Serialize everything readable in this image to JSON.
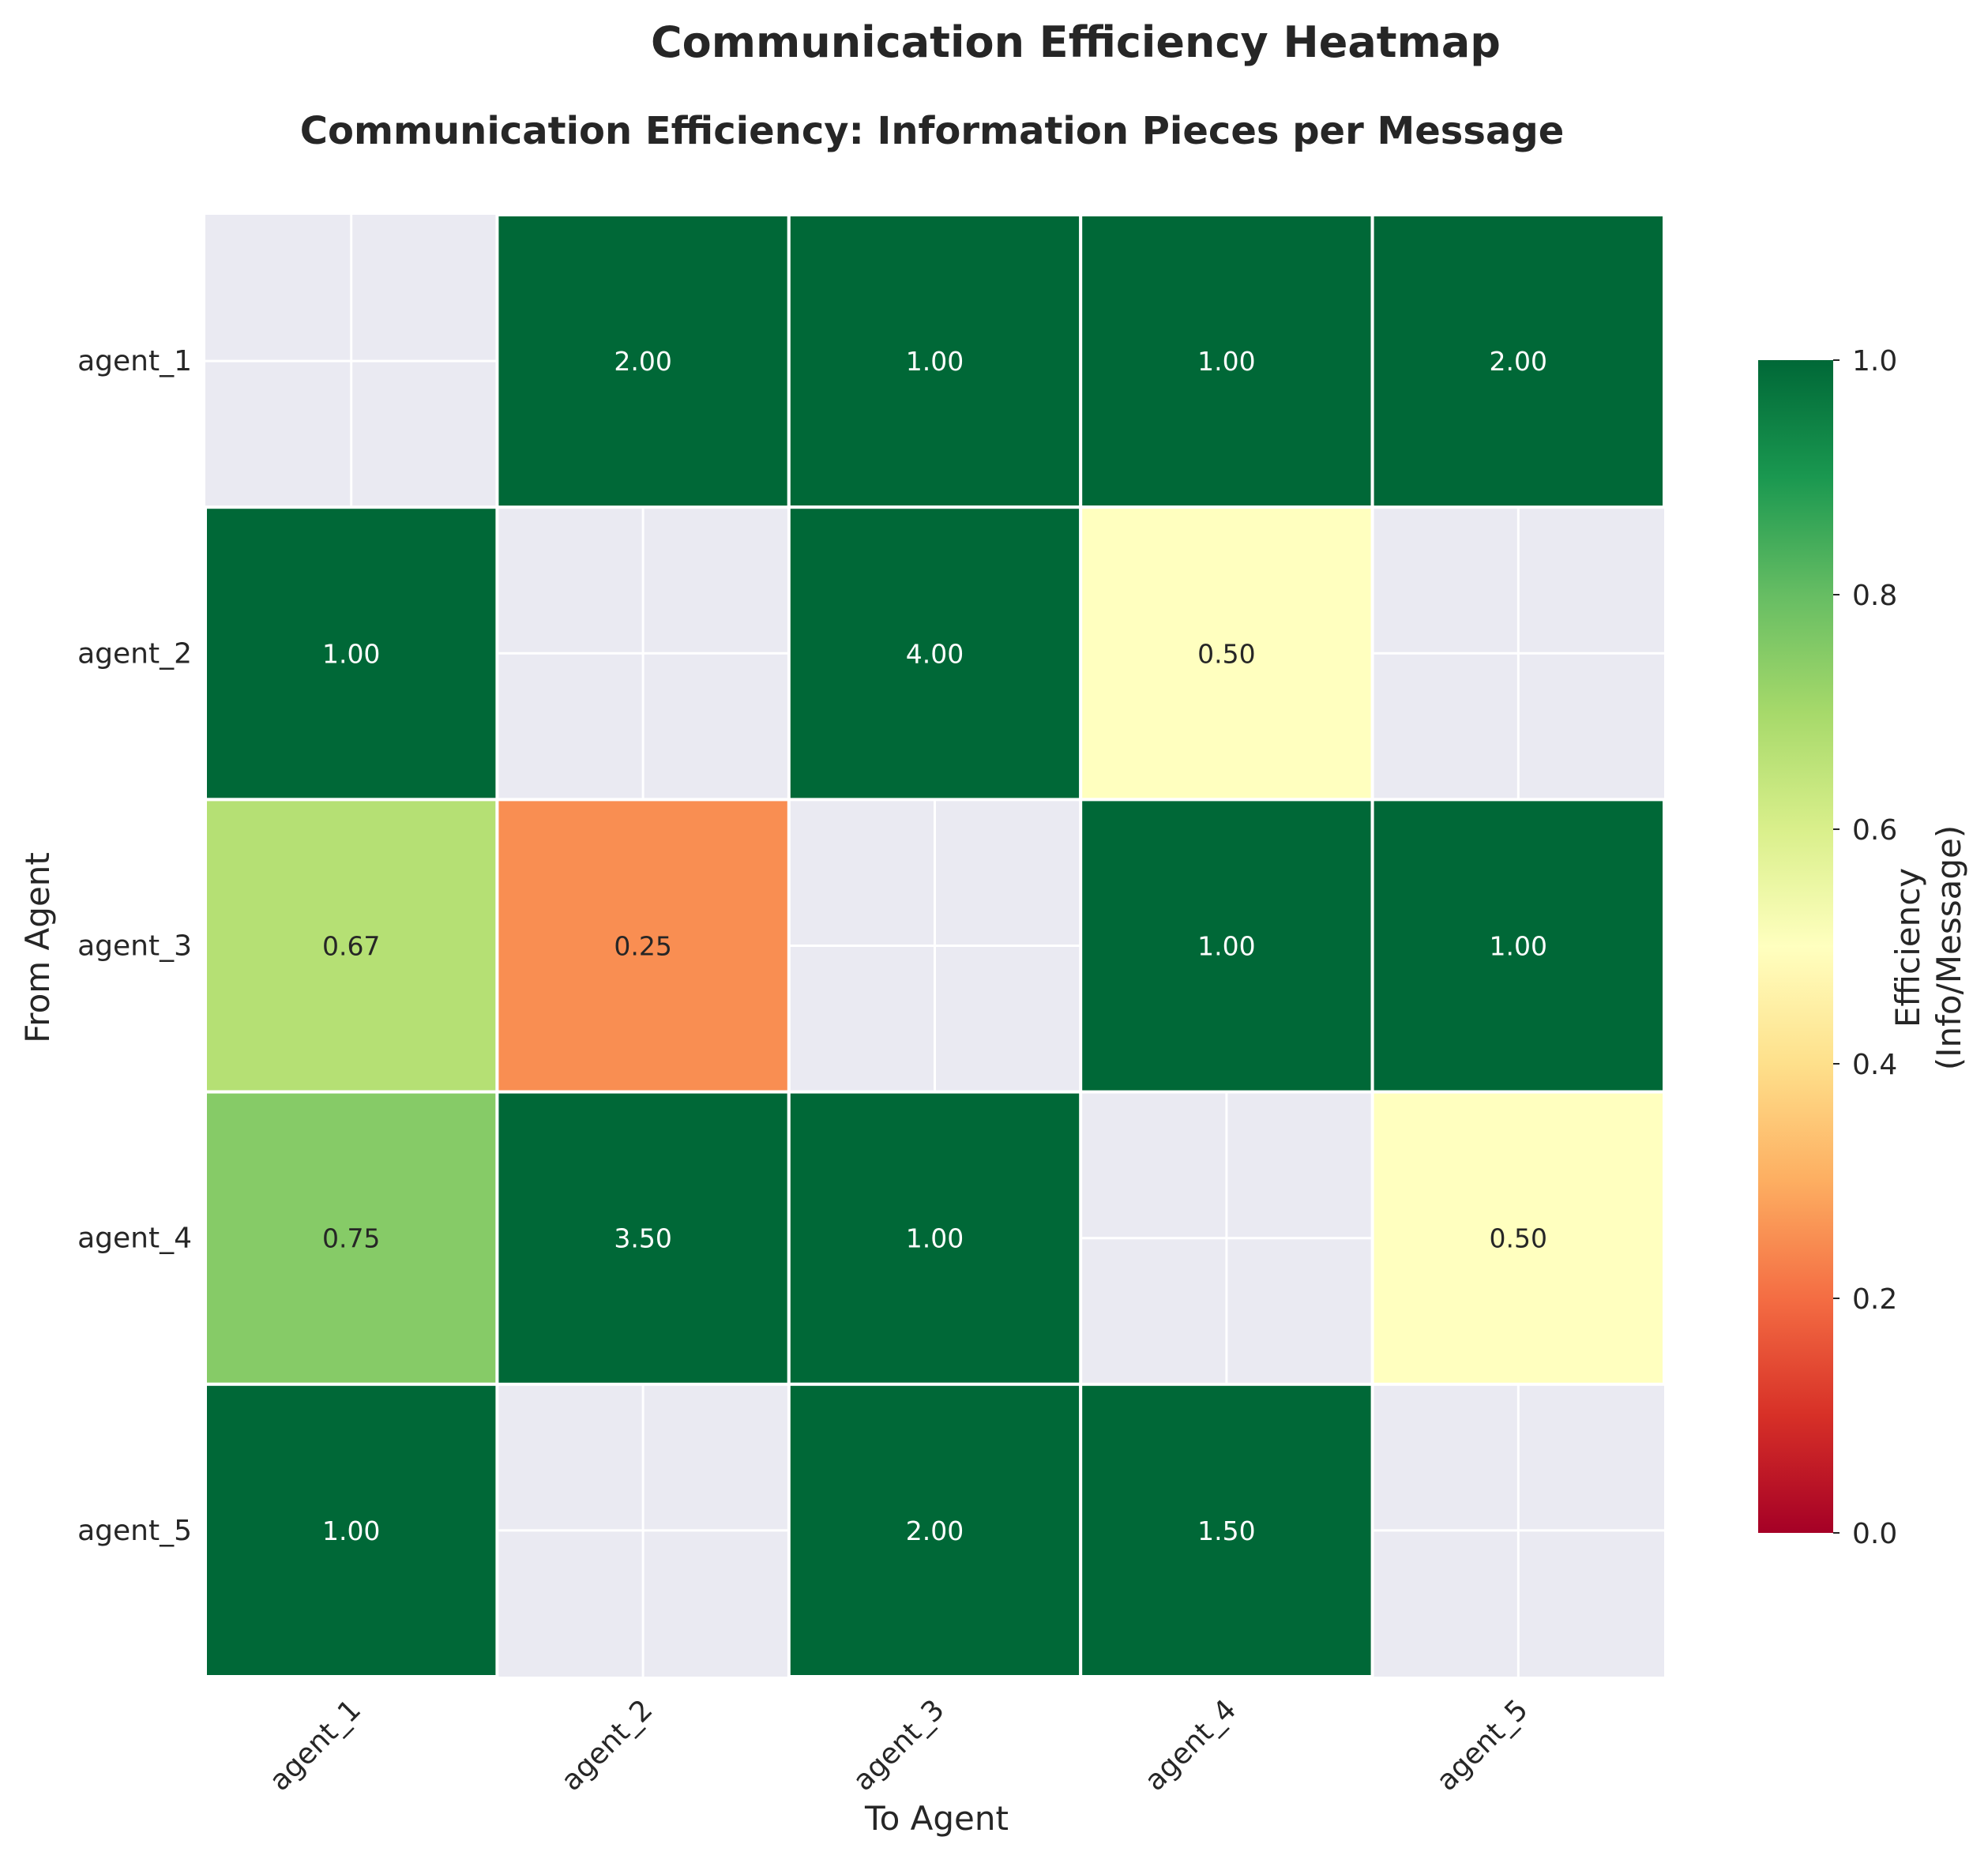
{
  "figure": {
    "suptitle": "Communication Efficiency Heatmap"
  },
  "chart_data": {
    "type": "heatmap",
    "title": "Communication Efficiency: Information Pieces per Message",
    "xlabel": "To Agent",
    "ylabel": "From Agent",
    "x_categories": [
      "agent_1",
      "agent_2",
      "agent_3",
      "agent_4",
      "agent_5"
    ],
    "y_categories": [
      "agent_1",
      "agent_2",
      "agent_3",
      "agent_4",
      "agent_5"
    ],
    "values": [
      [
        null,
        2.0,
        1.0,
        1.0,
        2.0
      ],
      [
        1.0,
        null,
        4.0,
        0.5,
        null
      ],
      [
        0.67,
        0.25,
        null,
        1.0,
        1.0
      ],
      [
        0.75,
        3.5,
        1.0,
        null,
        0.5
      ],
      [
        1.0,
        null,
        2.0,
        1.5,
        null
      ]
    ],
    "value_format": "0.00",
    "colormap": "RdYlGn",
    "vmin": 0.0,
    "vmax": 1.0,
    "missing_color": "#eaeaf2",
    "grid": true,
    "colorbar": {
      "label_line1": "Efficiency",
      "label_line2": "(Info/Message)",
      "ticks": [
        "0.0",
        "0.2",
        "0.4",
        "0.6",
        "0.8",
        "1.0"
      ],
      "tick_values": [
        0.0,
        0.2,
        0.4,
        0.6,
        0.8,
        1.0
      ]
    }
  }
}
